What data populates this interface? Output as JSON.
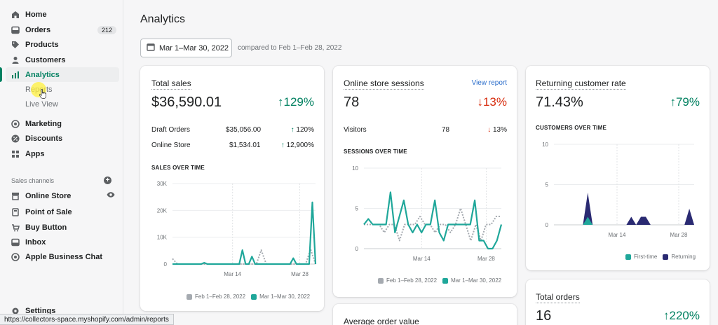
{
  "sidebar": {
    "items": [
      {
        "label": "Home",
        "icon": "home-icon"
      },
      {
        "label": "Orders",
        "icon": "orders-icon",
        "badge": "212"
      },
      {
        "label": "Products",
        "icon": "tag-icon"
      },
      {
        "label": "Customers",
        "icon": "person-icon"
      },
      {
        "label": "Analytics",
        "icon": "bar-chart-icon",
        "active": true
      },
      {
        "label": "Marketing",
        "icon": "target-icon"
      },
      {
        "label": "Discounts",
        "icon": "discount-icon"
      },
      {
        "label": "Apps",
        "icon": "apps-icon"
      }
    ],
    "sub_items": [
      "Reports",
      "Live View"
    ],
    "sales_channels_label": "Sales channels",
    "channels": [
      {
        "label": "Online Store",
        "icon": "store-icon"
      },
      {
        "label": "Point of Sale",
        "icon": "pos-icon"
      },
      {
        "label": "Buy Button",
        "icon": "buy-button-icon"
      },
      {
        "label": "Inbox",
        "icon": "inbox-icon"
      },
      {
        "label": "Apple Business Chat",
        "icon": "chat-icon"
      }
    ],
    "settings_label": "Settings"
  },
  "status_url": "https://collectors-space.myshopify.com/admin/reports",
  "page": {
    "title": "Analytics",
    "date_range": "Mar 1–Mar 30, 2022",
    "compared": "compared to Feb 1–Feb 28, 2022"
  },
  "colors": {
    "accent": "#008060",
    "current_series": "#1fa79a",
    "previous_series": "#a5aab0",
    "returning": "#2a2a72",
    "up": "#008060",
    "down": "#d72c0d"
  },
  "total_sales": {
    "title": "Total sales",
    "value": "$36,590.01",
    "change": "129%",
    "rows": [
      {
        "label": "Draft Orders",
        "amount": "$35,056.00",
        "change": "120%"
      },
      {
        "label": "Online Store",
        "amount": "$1,534.01",
        "change": "12,900%"
      }
    ],
    "chart_label": "SALES OVER TIME",
    "legend_prev": "Feb 1–Feb 28, 2022",
    "legend_cur": "Mar 1–Mar 30, 2022"
  },
  "sessions": {
    "title": "Online store sessions",
    "view_report": "View report",
    "value": "78",
    "change": "13%",
    "visitors_label": "Visitors",
    "visitors_value": "78",
    "visitors_change": "13%",
    "chart_label": "SESSIONS OVER TIME",
    "legend_prev": "Feb 1–Feb 28, 2022",
    "legend_cur": "Mar 1–Mar 30, 2022"
  },
  "returning": {
    "title": "Returning customer rate",
    "value": "71.43%",
    "change": "79%",
    "chart_label": "CUSTOMERS OVER TIME",
    "legend_first": "First-time",
    "legend_returning": "Returning"
  },
  "total_orders": {
    "title": "Total orders",
    "value": "16",
    "change": "220%"
  },
  "avg_order": {
    "title": "Average order value"
  },
  "chart_data": [
    {
      "type": "line",
      "title": "SALES OVER TIME",
      "x_ticks": [
        "Mar 14",
        "Mar 28"
      ],
      "y_ticks": [
        "0",
        "10K",
        "20K",
        "30K"
      ],
      "ylim": [
        0,
        30000
      ],
      "series": [
        {
          "name": "Feb 1–Feb 28, 2022",
          "values": [
            2000,
            0,
            0,
            0,
            0,
            0,
            0,
            0,
            0,
            0,
            0,
            0,
            0,
            0,
            0,
            0,
            0,
            0,
            5200,
            0,
            0,
            0,
            0,
            0,
            0,
            0,
            0,
            0,
            5500,
            0
          ]
        },
        {
          "name": "Mar 1–Mar 30, 2022",
          "values": [
            0,
            0,
            0,
            0,
            0,
            0,
            0,
            0,
            0,
            0,
            500,
            0,
            0,
            0,
            0,
            0,
            0,
            0,
            0,
            0,
            0,
            0,
            5200,
            0,
            0,
            2800,
            0,
            0,
            0,
            0,
            0,
            0,
            0,
            0,
            0,
            0,
            0,
            0,
            2200,
            0,
            0,
            0,
            0,
            0,
            23000,
            0
          ]
        }
      ]
    },
    {
      "type": "line",
      "title": "SESSIONS OVER TIME",
      "x_ticks": [
        "Mar 14",
        "Mar 28"
      ],
      "y_ticks": [
        "0",
        "5",
        "10"
      ],
      "ylim": [
        0,
        10
      ],
      "series": [
        {
          "name": "Feb 1–Feb 28, 2022",
          "values": [
            3,
            3,
            3,
            3,
            2,
            3,
            3,
            1,
            3,
            3,
            3,
            4,
            3,
            3,
            2,
            3,
            3,
            2,
            3,
            5,
            3,
            1,
            3,
            1,
            3,
            3,
            4,
            4
          ]
        },
        {
          "name": "Mar 1–Mar 30, 2022",
          "values": [
            3,
            3.7,
            3,
            3,
            3,
            3,
            7,
            2,
            4,
            6,
            3,
            2,
            3,
            2,
            3,
            3,
            6,
            2,
            1,
            3,
            3,
            3,
            3,
            3,
            3,
            6,
            1,
            1,
            0,
            0,
            1,
            3
          ]
        }
      ]
    },
    {
      "type": "area",
      "title": "CUSTOMERS OVER TIME",
      "x_ticks": [
        "Mar 14",
        "Mar 28"
      ],
      "y_ticks": [
        "0",
        "5",
        "10"
      ],
      "ylim": [
        0,
        10
      ],
      "series": [
        {
          "name": "First-time",
          "values": [
            0,
            0,
            0,
            0,
            0,
            0,
            0,
            1,
            0,
            0,
            0,
            0,
            0,
            0,
            0,
            0,
            0,
            0,
            0,
            0,
            0,
            0,
            0,
            0,
            0,
            0,
            0,
            0,
            0,
            0
          ]
        },
        {
          "name": "Returning",
          "values": [
            0,
            0,
            0,
            0,
            0,
            0,
            0,
            4,
            0,
            0,
            0,
            0,
            0,
            0,
            0,
            0,
            1,
            0,
            1,
            1,
            0,
            0,
            0,
            0,
            0,
            0,
            0,
            0,
            2,
            0
          ]
        }
      ]
    }
  ]
}
